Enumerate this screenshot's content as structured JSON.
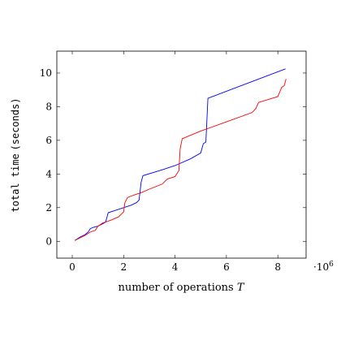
{
  "chart_data": {
    "type": "line",
    "title": "",
    "xlabel": "number of operations",
    "xlabel_var": "T",
    "ylabel_prefix": "total time",
    "ylabel_unit": "(seconds)",
    "x_multiplier": "·10",
    "x_multiplier_exp": "6",
    "xlim": [
      -0.6,
      9.1
    ],
    "ylim": [
      -1.0,
      11.3
    ],
    "x_ticks": [
      0,
      2,
      4,
      6,
      8
    ],
    "x_tick_labels": [
      "0",
      "2",
      "4",
      "6",
      "8"
    ],
    "y_ticks": [
      0,
      2,
      4,
      6,
      8,
      10
    ],
    "y_tick_labels": [
      "0",
      "2",
      "4",
      "6",
      "8",
      "10"
    ],
    "grid": false,
    "legend": "none",
    "series": [
      {
        "color": "#0000ff",
        "points": [
          [
            0.1,
            0.05
          ],
          [
            0.3,
            0.25
          ],
          [
            0.5,
            0.4
          ],
          [
            0.62,
            0.55
          ],
          [
            0.7,
            0.75
          ],
          [
            0.8,
            0.82
          ],
          [
            1.0,
            0.9
          ],
          [
            1.2,
            1.05
          ],
          [
            1.3,
            1.15
          ],
          [
            1.4,
            1.7
          ],
          [
            1.7,
            1.85
          ],
          [
            2.0,
            2.0
          ],
          [
            2.3,
            2.15
          ],
          [
            2.5,
            2.3
          ],
          [
            2.6,
            2.45
          ],
          [
            2.68,
            3.5
          ],
          [
            2.75,
            3.9
          ],
          [
            3.5,
            4.25
          ],
          [
            4.0,
            4.5
          ],
          [
            4.6,
            4.9
          ],
          [
            5.0,
            5.25
          ],
          [
            5.1,
            5.8
          ],
          [
            5.2,
            5.9
          ],
          [
            5.28,
            8.5
          ],
          [
            8.3,
            10.25
          ]
        ]
      },
      {
        "color": "#ff0000",
        "points": [
          [
            0.1,
            0.05
          ],
          [
            0.3,
            0.2
          ],
          [
            0.5,
            0.35
          ],
          [
            0.7,
            0.55
          ],
          [
            0.9,
            0.65
          ],
          [
            1.0,
            0.9
          ],
          [
            1.2,
            1.1
          ],
          [
            1.5,
            1.25
          ],
          [
            1.8,
            1.45
          ],
          [
            1.9,
            1.6
          ],
          [
            2.0,
            1.75
          ],
          [
            2.05,
            2.3
          ],
          [
            2.15,
            2.6
          ],
          [
            2.4,
            2.75
          ],
          [
            2.7,
            2.9
          ],
          [
            3.0,
            3.1
          ],
          [
            3.5,
            3.4
          ],
          [
            3.7,
            3.7
          ],
          [
            4.0,
            3.85
          ],
          [
            4.15,
            4.2
          ],
          [
            4.2,
            5.5
          ],
          [
            4.28,
            6.1
          ],
          [
            5.0,
            6.55
          ],
          [
            6.0,
            7.1
          ],
          [
            7.0,
            7.65
          ],
          [
            7.15,
            7.9
          ],
          [
            7.25,
            8.25
          ],
          [
            8.0,
            8.6
          ],
          [
            8.15,
            9.15
          ],
          [
            8.25,
            9.25
          ],
          [
            8.32,
            9.65
          ]
        ]
      }
    ]
  }
}
